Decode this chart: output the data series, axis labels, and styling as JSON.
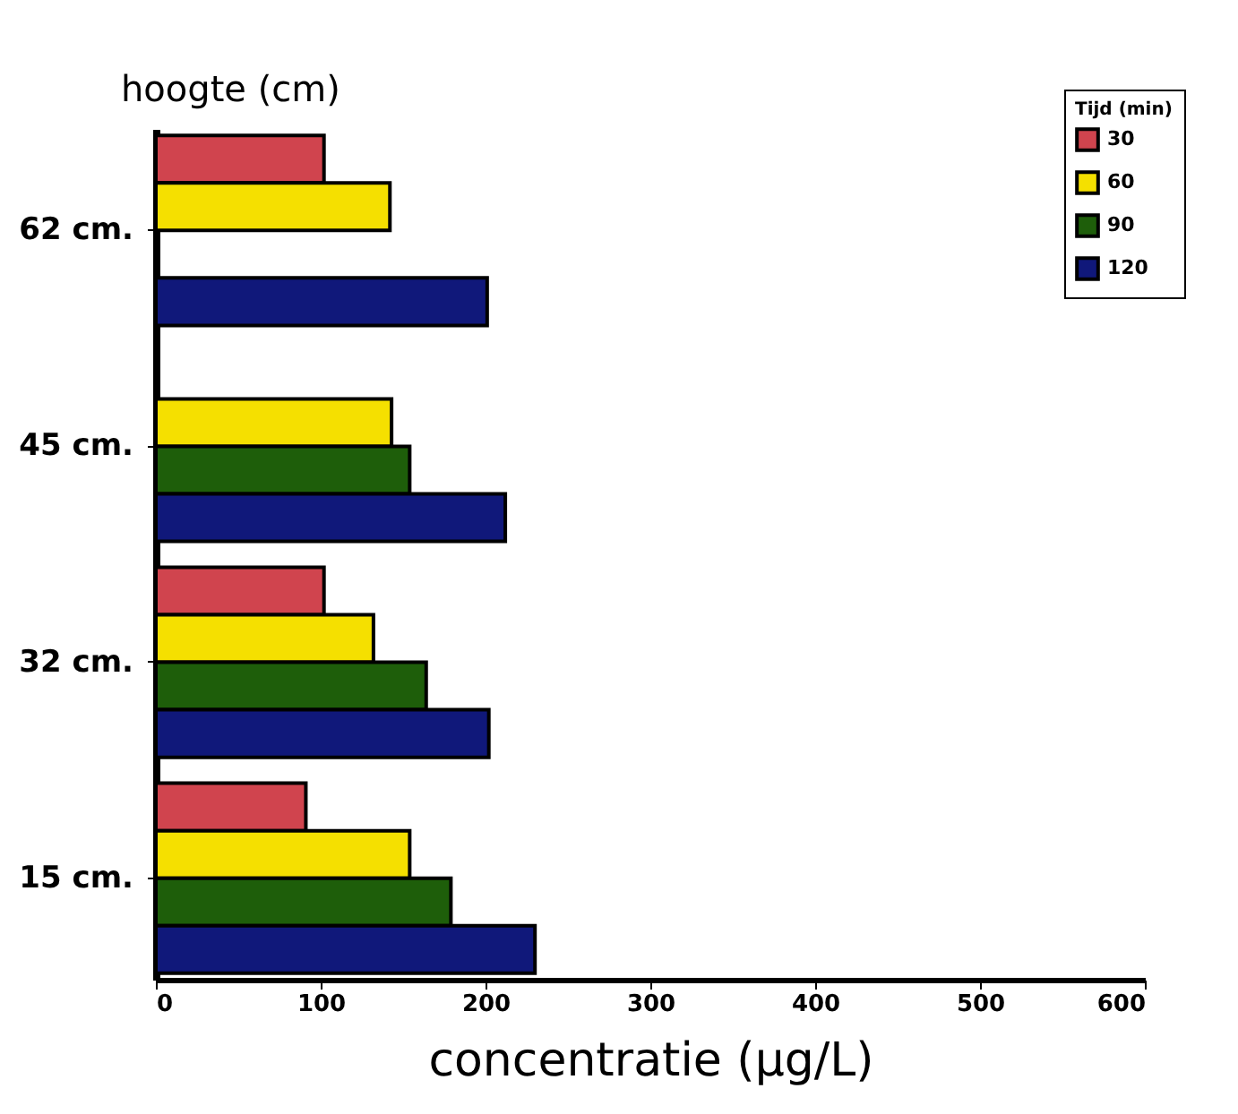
{
  "chart_data": {
    "type": "bar",
    "orientation": "horizontal",
    "xlabel": "concentratie (μg/L)",
    "ylabel": "hoogte (cm)",
    "legend_title": "Tijd (min)",
    "legend": "top right",
    "categories": [
      "62 cm.",
      "45 cm.",
      "32 cm.",
      "15 cm."
    ],
    "series": [
      {
        "name": "30",
        "color": "#d0444e",
        "values": [
          102,
          null,
          102,
          91
        ]
      },
      {
        "name": "60",
        "color": "#f5e000",
        "values": [
          142,
          143,
          132,
          154
        ]
      },
      {
        "name": "90",
        "color": "#1e5e0a",
        "values": [
          null,
          154,
          164,
          179
        ]
      },
      {
        "name": "120",
        "color": "#10187a",
        "values": [
          201,
          212,
          202,
          230
        ]
      }
    ],
    "xlim": [
      0,
      600
    ],
    "xticks": [
      0,
      100,
      200,
      300,
      400,
      500,
      600
    ],
    "grid": false
  }
}
